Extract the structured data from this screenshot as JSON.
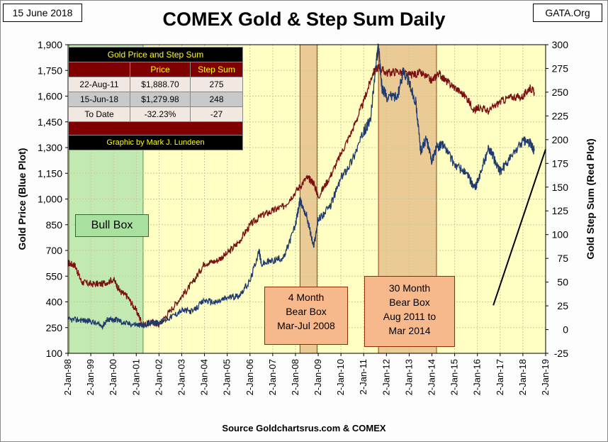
{
  "header": {
    "date": "15 June 2018",
    "brand": "GATA.Org",
    "title": "COMEX Gold & Step Sum Daily",
    "source": "Source Goldchartsrus.com & COMEX"
  },
  "table": {
    "title": "Gold Price and Step Sum",
    "columns": [
      "",
      "Price",
      "Step Sum"
    ],
    "rows": [
      [
        "22-Aug-11",
        "$1,888.70",
        "275"
      ],
      [
        "15-Jun-18",
        "$1,279.98",
        "248"
      ],
      [
        "To Date",
        "-32.23%",
        "-27"
      ]
    ],
    "credit": "Graphic by Mark J. Lundeen"
  },
  "annotations": {
    "bull_box": "Bull Box",
    "bear_box_1": [
      "4 Month",
      "Bear Box",
      "Mar-Jul 2008"
    ],
    "bear_box_2": [
      "30 Month",
      "Bear Box",
      "Aug 2011 to",
      "Mar 2014"
    ]
  },
  "colors": {
    "plot_bg": "#ffffc4",
    "gold_line": "#1f3a6e",
    "step_line": "#7a1010",
    "bull_fill": "#b8e6b0",
    "bear_fill": "#e8c690"
  },
  "chart_data": {
    "type": "line",
    "title": "COMEX Gold & Step Sum Daily",
    "xlabel": "",
    "ylabel_left": "Gold Price    (Blue Plot)",
    "ylabel_right": "Gold Step Sum    (Red Plot)",
    "ylim_left": [
      100,
      1900
    ],
    "ylim_right": [
      -25,
      300
    ],
    "yticks_left": [
      "100",
      "250",
      "400",
      "550",
      "700",
      "850",
      "1,000",
      "1,150",
      "1,300",
      "1,450",
      "1,600",
      "1,750",
      "1,900"
    ],
    "yticks_right": [
      "-25",
      "0",
      "25",
      "50",
      "75",
      "100",
      "125",
      "150",
      "175",
      "200",
      "225",
      "250",
      "275",
      "300"
    ],
    "xlim": [
      1998.0,
      2019.0
    ],
    "xticks": [
      "2-Jan-98",
      "2-Jan-99",
      "2-Jan-00",
      "2-Jan-01",
      "2-Jan-02",
      "2-Jan-03",
      "2-Jan-04",
      "2-Jan-05",
      "2-Jan-06",
      "2-Jan-07",
      "2-Jan-08",
      "2-Jan-09",
      "2-Jan-10",
      "2-Jan-11",
      "2-Jan-12",
      "2-Jan-13",
      "2-Jan-14",
      "2-Jan-15",
      "2-Jan-16",
      "2-Jan-17",
      "2-Jan-18",
      "2-Jan-19"
    ],
    "shaded_regions": [
      {
        "name": "Bull Box",
        "x0": 1998.05,
        "x1": 2001.3
      },
      {
        "name": "4 Month Bear Box",
        "x0": 2008.2,
        "x1": 2008.95
      },
      {
        "name": "30 Month Bear Box",
        "x0": 2011.65,
        "x1": 2014.2
      }
    ],
    "trendline": {
      "x": [
        2016.7,
        2019.0
      ],
      "y_left": [
        380,
        1290
      ]
    },
    "series": [
      {
        "name": "Gold Price",
        "axis": "left",
        "x": [
          1998.0,
          1998.5,
          1999.0,
          1999.5,
          1999.75,
          2000.0,
          2000.1,
          2000.5,
          2001.0,
          2001.3,
          2001.7,
          2002.0,
          2002.5,
          2003.0,
          2003.5,
          2004.0,
          2004.5,
          2005.0,
          2005.5,
          2006.0,
          2006.4,
          2006.5,
          2007.0,
          2007.5,
          2008.0,
          2008.2,
          2008.5,
          2008.8,
          2009.0,
          2009.5,
          2010.0,
          2010.5,
          2011.0,
          2011.3,
          2011.55,
          2011.65,
          2011.8,
          2012.0,
          2012.5,
          2012.75,
          2013.0,
          2013.3,
          2013.5,
          2013.75,
          2014.0,
          2014.2,
          2014.5,
          2015.0,
          2015.5,
          2015.9,
          2016.0,
          2016.5,
          2016.9,
          2017.0,
          2017.5,
          2018.0,
          2018.3,
          2018.5
        ],
        "values": [
          295,
          295,
          287,
          258,
          300,
          290,
          300,
          275,
          268,
          260,
          280,
          278,
          310,
          350,
          345,
          410,
          395,
          425,
          435,
          520,
          700,
          620,
          640,
          660,
          850,
          990,
          900,
          720,
          880,
          950,
          1120,
          1230,
          1390,
          1460,
          1800,
          1888,
          1650,
          1600,
          1600,
          1750,
          1680,
          1560,
          1280,
          1350,
          1220,
          1300,
          1320,
          1200,
          1150,
          1060,
          1100,
          1300,
          1190,
          1160,
          1250,
          1340,
          1330,
          1280
        ]
      },
      {
        "name": "Step Sum",
        "axis": "right",
        "x": [
          1998.0,
          1998.3,
          1998.6,
          1999.0,
          1999.5,
          2000.0,
          2000.3,
          2000.6,
          2001.0,
          2001.3,
          2001.7,
          2002.0,
          2002.5,
          2003.0,
          2003.5,
          2004.0,
          2004.5,
          2005.0,
          2005.5,
          2006.0,
          2006.5,
          2007.0,
          2007.5,
          2008.0,
          2008.5,
          2008.8,
          2009.0,
          2009.5,
          2010.0,
          2010.5,
          2011.0,
          2011.4,
          2011.65,
          2012.0,
          2012.5,
          2013.0,
          2013.5,
          2014.0,
          2014.3,
          2014.6,
          2015.0,
          2015.5,
          2015.9,
          2016.0,
          2016.5,
          2017.0,
          2017.5,
          2018.0,
          2018.3,
          2018.5
        ],
        "values": [
          70,
          68,
          50,
          48,
          48,
          53,
          40,
          35,
          20,
          5,
          8,
          5,
          20,
          35,
          50,
          70,
          72,
          80,
          92,
          110,
          120,
          125,
          130,
          145,
          160,
          155,
          140,
          160,
          185,
          210,
          240,
          270,
          277,
          270,
          272,
          268,
          270,
          262,
          270,
          262,
          255,
          245,
          230,
          235,
          230,
          240,
          245,
          245,
          255,
          250
        ]
      }
    ]
  }
}
